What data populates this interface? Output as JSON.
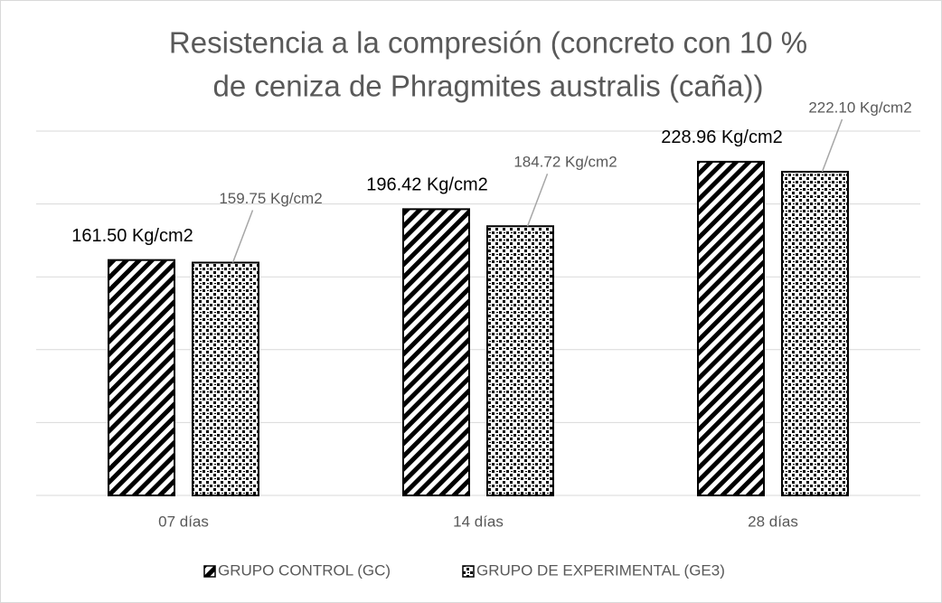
{
  "chart_data": {
    "type": "bar",
    "title": [
      "Resistencia a la compresión (concreto con 10 %",
      "de ceniza de Phragmites australis (caña))"
    ],
    "categories": [
      "07 días",
      "14 días",
      "28 días"
    ],
    "series": [
      {
        "name": "GRUPO CONTROL (GC)",
        "color": "#000000",
        "values": [
          161.5,
          196.42,
          228.96
        ],
        "value_labels": [
          "161.50 Kg/cm2",
          "196.42 Kg/cm2",
          "228.96 Kg/cm2"
        ]
      },
      {
        "name": "GRUPO DE EXPERIMENTAL (GE3)",
        "color": "#000000",
        "values": [
          159.75,
          184.72,
          222.1
        ],
        "value_labels": [
          "159.75 Kg/cm2",
          "184.72 Kg/cm2",
          "222.10 Kg/cm2"
        ]
      }
    ],
    "ylim": [
      0,
      250
    ],
    "yticks": [
      0,
      50,
      100,
      150,
      200,
      250
    ],
    "grid": true,
    "legend": "bottom"
  }
}
